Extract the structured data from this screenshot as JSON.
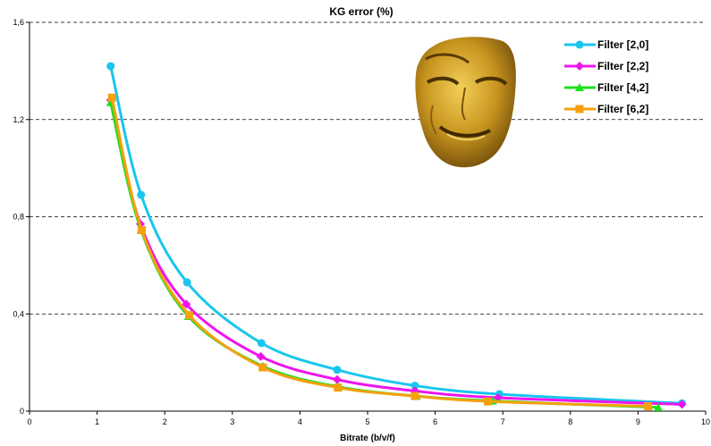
{
  "chart_data": {
    "type": "line",
    "title": "KG error (%)",
    "xlabel": "Bitrate (b/v/f)",
    "ylabel": "",
    "xlim": [
      0,
      10
    ],
    "ylim": [
      0,
      1.6
    ],
    "x_ticks": [
      "0",
      "1",
      "2",
      "3",
      "4",
      "5",
      "6",
      "7",
      "8",
      "9",
      "10"
    ],
    "y_ticks": [
      "0",
      "0,4",
      "0,8",
      "1,2",
      "1,6"
    ],
    "grid": "horizontal-dashed",
    "legend_position": "top-right",
    "series": [
      {
        "name": "Filter [2,0]",
        "color": "#18c6ee",
        "marker": "circle",
        "points": [
          [
            1.2,
            1.42
          ],
          [
            1.65,
            0.89
          ],
          [
            2.33,
            0.53
          ],
          [
            3.43,
            0.28
          ],
          [
            4.55,
            0.17
          ],
          [
            5.7,
            0.105
          ],
          [
            6.95,
            0.07
          ],
          [
            9.65,
            0.032
          ]
        ]
      },
      {
        "name": "Filter [2,2]",
        "color": "#ee14ee",
        "marker": "diamond",
        "points": [
          [
            1.2,
            1.28
          ],
          [
            1.64,
            0.77
          ],
          [
            2.32,
            0.44
          ],
          [
            3.42,
            0.225
          ],
          [
            4.55,
            0.13
          ],
          [
            5.7,
            0.083
          ],
          [
            6.93,
            0.055
          ],
          [
            9.65,
            0.028
          ]
        ]
      },
      {
        "name": "Filter [4,2]",
        "color": "#1ce01c",
        "marker": "triangle",
        "points": [
          [
            1.2,
            1.27
          ],
          [
            1.65,
            0.745
          ],
          [
            2.35,
            0.39
          ],
          [
            3.45,
            0.185
          ],
          [
            4.57,
            0.1
          ],
          [
            5.72,
            0.062
          ],
          [
            6.85,
            0.042
          ],
          [
            9.3,
            0.015
          ]
        ]
      },
      {
        "name": "Filter [6,2]",
        "color": "#f5a010",
        "marker": "square",
        "points": [
          [
            1.22,
            1.29
          ],
          [
            1.66,
            0.745
          ],
          [
            2.36,
            0.395
          ],
          [
            3.45,
            0.18
          ],
          [
            4.56,
            0.097
          ],
          [
            5.7,
            0.062
          ],
          [
            6.78,
            0.04
          ],
          [
            9.15,
            0.02
          ]
        ]
      }
    ]
  }
}
